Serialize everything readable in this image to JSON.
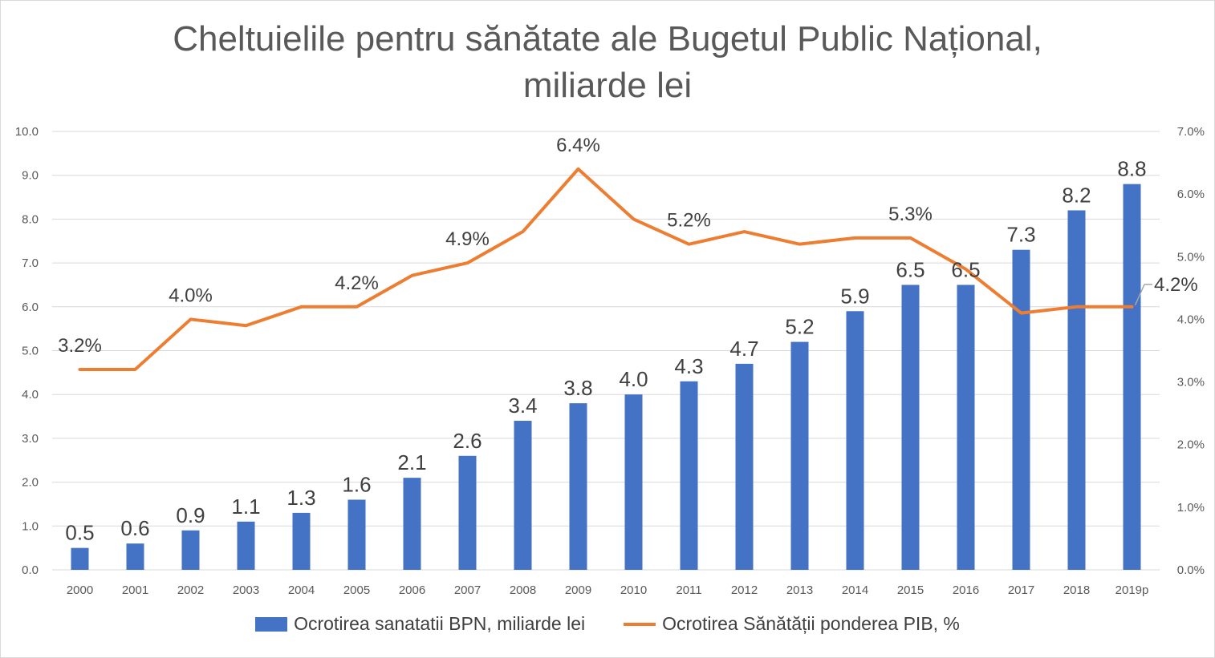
{
  "chart_data": {
    "type": "bar+line",
    "title": [
      "Cheltuielile pentru sănătate ale Bugetul Public Național,",
      "miliarde lei"
    ],
    "categories": [
      "2000",
      "2001",
      "2002",
      "2003",
      "2004",
      "2005",
      "2006",
      "2007",
      "2008",
      "2009",
      "2010",
      "2011",
      "2012",
      "2013",
      "2014",
      "2015",
      "2016",
      "2017",
      "2018",
      "2019p"
    ],
    "left_axis": {
      "min": 0,
      "max": 10,
      "step": 1,
      "ticks": [
        "0.0",
        "1.0",
        "2.0",
        "3.0",
        "4.0",
        "5.0",
        "6.0",
        "7.0",
        "8.0",
        "9.0",
        "10.0"
      ]
    },
    "right_axis": {
      "min": 0,
      "max": 7,
      "step": 1,
      "ticks": [
        "0.0%",
        "1.0%",
        "2.0%",
        "3.0%",
        "4.0%",
        "5.0%",
        "6.0%",
        "7.0%"
      ]
    },
    "grid": true,
    "legend_position": "bottom",
    "series": [
      {
        "name": "Ocrotirea sanatatii BPN, miliarde lei",
        "type": "bar",
        "axis": "left",
        "color": "#4472c4",
        "values": [
          0.5,
          0.6,
          0.9,
          1.1,
          1.3,
          1.6,
          2.1,
          2.6,
          3.4,
          3.8,
          4.0,
          4.3,
          4.7,
          5.2,
          5.9,
          6.5,
          6.5,
          7.3,
          8.2,
          8.8
        ],
        "labels": [
          "0.5",
          "0.6",
          "0.9",
          "1.1",
          "1.3",
          "1.6",
          "2.1",
          "2.6",
          "3.4",
          "3.8",
          "4.0",
          "4.3",
          "4.7",
          "5.2",
          "5.9",
          "6.5",
          "6.5",
          "7.3",
          "8.2",
          "8.8"
        ]
      },
      {
        "name": "Ocrotirea Sănătății ponderea PIB, %",
        "type": "line",
        "axis": "right",
        "color": "#ed7d31",
        "values": [
          3.2,
          3.2,
          4.0,
          3.9,
          4.2,
          4.2,
          4.7,
          4.9,
          5.4,
          6.4,
          5.6,
          5.2,
          5.4,
          5.2,
          5.3,
          5.3,
          4.8,
          4.1,
          4.2,
          4.2
        ],
        "labels": [
          "3.2%",
          "",
          "4.0%",
          "",
          "",
          "4.2%",
          "",
          "4.9%",
          "",
          "6.4%",
          "",
          "5.2%",
          "",
          "",
          "",
          "5.3%",
          "",
          "",
          "",
          "4.2%"
        ]
      }
    ]
  }
}
